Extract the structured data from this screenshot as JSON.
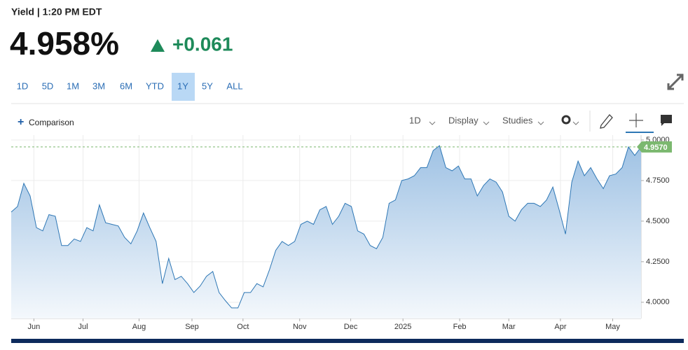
{
  "header": {
    "label": "Yield | 1:20 PM EDT",
    "price": "4.958%",
    "change": "+0.061"
  },
  "ranges": {
    "items": [
      "1D",
      "5D",
      "1M",
      "3M",
      "6M",
      "YTD",
      "1Y",
      "5Y",
      "ALL"
    ],
    "selected": 6
  },
  "toolbar": {
    "comparison": "Comparison",
    "interval": "1D",
    "display": "Display",
    "studies": "Studies"
  },
  "chart_data": {
    "type": "area",
    "values": [
      4.556,
      4.59,
      4.733,
      4.655,
      4.46,
      4.44,
      4.54,
      4.53,
      4.35,
      4.35,
      4.39,
      4.375,
      4.46,
      4.44,
      4.6,
      4.49,
      4.48,
      4.47,
      4.4,
      4.36,
      4.44,
      4.55,
      4.46,
      4.375,
      4.115,
      4.27,
      4.14,
      4.16,
      4.115,
      4.06,
      4.1,
      4.16,
      4.19,
      4.06,
      4.01,
      3.965,
      3.965,
      4.06,
      4.06,
      4.115,
      4.095,
      4.2,
      4.32,
      4.375,
      4.35,
      4.375,
      4.48,
      4.5,
      4.48,
      4.57,
      4.59,
      4.48,
      4.53,
      4.61,
      4.59,
      4.44,
      4.42,
      4.35,
      4.33,
      4.4,
      4.61,
      4.63,
      4.75,
      4.76,
      4.78,
      4.83,
      4.83,
      4.935,
      4.965,
      4.83,
      4.81,
      4.84,
      4.76,
      4.76,
      4.655,
      4.72,
      4.76,
      4.74,
      4.68,
      4.53,
      4.5,
      4.57,
      4.61,
      4.61,
      4.59,
      4.63,
      4.71,
      4.57,
      4.42,
      4.74,
      4.87,
      4.78,
      4.83,
      4.76,
      4.7,
      4.78,
      4.79,
      4.83,
      4.957,
      4.905,
      4.957
    ],
    "color": "#2e77b5",
    "xlim": [
      0,
      100
    ],
    "xticks": [
      {
        "value": 3.6,
        "label": "Jun"
      },
      {
        "value": 11.4,
        "label": "Jul"
      },
      {
        "value": 20.3,
        "label": "Aug"
      },
      {
        "value": 28.7,
        "label": "Sep"
      },
      {
        "value": 36.8,
        "label": "Oct"
      },
      {
        "value": 45.8,
        "label": "Nov"
      },
      {
        "value": 53.9,
        "label": "Dec"
      },
      {
        "value": 62.2,
        "label": "2025"
      },
      {
        "value": 71.2,
        "label": "Feb"
      },
      {
        "value": 79.0,
        "label": "Mar"
      },
      {
        "value": 87.2,
        "label": "Apr"
      },
      {
        "value": 95.5,
        "label": "May"
      }
    ],
    "ylim": [
      3.9,
      5.03
    ],
    "yticks": [
      {
        "value": 4.0,
        "label": "4.0000"
      },
      {
        "value": 4.25,
        "label": "4.2500"
      },
      {
        "value": 4.5,
        "label": "4.5000"
      },
      {
        "value": 4.75,
        "label": "4.7500"
      },
      {
        "value": 5.0,
        "label": "5.0000"
      }
    ],
    "reference_line": {
      "value": 4.957,
      "label": "4.9570",
      "color": "#7bb86f"
    },
    "grid": true
  }
}
